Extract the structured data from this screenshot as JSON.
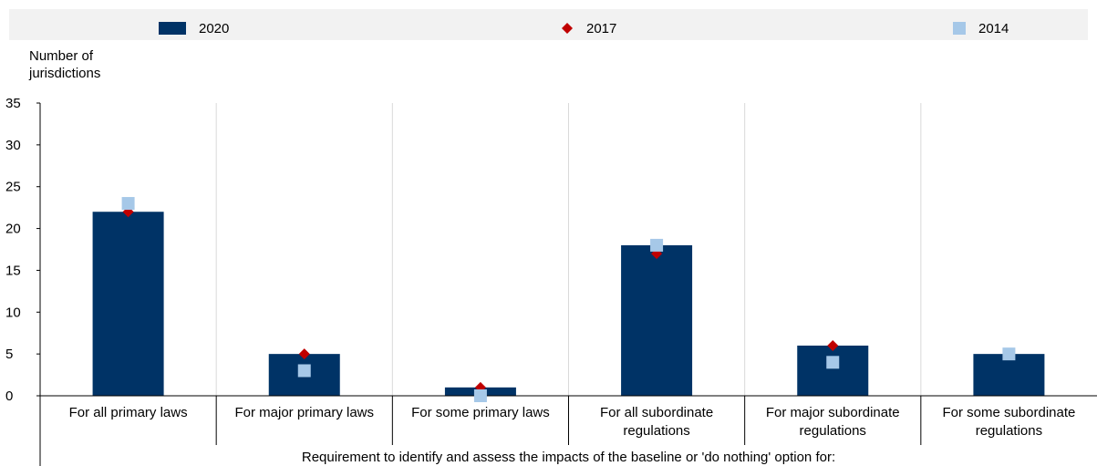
{
  "chart_data": {
    "type": "bar",
    "ylabel": "Number of jurisdictions",
    "ylabel_lines": [
      "Number of",
      "jurisdictions"
    ],
    "xlabel": "Requirement to identify and assess the impacts of the baseline or 'do nothing' option for:",
    "ylim": [
      0,
      35
    ],
    "yticks": [
      0,
      5,
      10,
      15,
      20,
      25,
      30,
      35
    ],
    "categories": [
      "For all primary laws",
      "For major primary laws",
      "For some primary laws",
      "For all subordinate regulations",
      "For major subordinate regulations",
      "For some subordinate regulations"
    ],
    "category_lines": [
      [
        "For all primary laws"
      ],
      [
        "For major primary laws"
      ],
      [
        "For some primary laws"
      ],
      [
        "For all subordinate",
        "regulations"
      ],
      [
        "For major subordinate",
        "regulations"
      ],
      [
        "For some subordinate",
        "regulations"
      ]
    ],
    "series": [
      {
        "name": "2020",
        "kind": "bar",
        "color": "#003366",
        "values": [
          22,
          5,
          1,
          18,
          6,
          5
        ]
      },
      {
        "name": "2017",
        "kind": "diamond",
        "color": "#c00000",
        "values": [
          22,
          5,
          1,
          17,
          6,
          null
        ]
      },
      {
        "name": "2014",
        "kind": "square",
        "color": "#a6c8e8",
        "values": [
          23,
          3,
          0,
          18,
          4,
          5
        ]
      }
    ],
    "grid": true,
    "legend_position": "top"
  }
}
